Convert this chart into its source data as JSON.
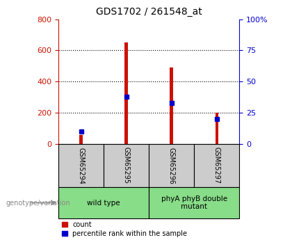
{
  "title": "GDS1702 / 261548_at",
  "categories": [
    "GSM65294",
    "GSM65295",
    "GSM65296",
    "GSM65297"
  ],
  "count_values": [
    60,
    650,
    490,
    200
  ],
  "percentile_values": [
    10,
    38,
    33,
    20
  ],
  "left_ylim": [
    0,
    800
  ],
  "right_ylim": [
    0,
    100
  ],
  "left_yticks": [
    0,
    200,
    400,
    600,
    800
  ],
  "right_yticks": [
    0,
    25,
    50,
    75,
    100
  ],
  "bar_color": "#cc1100",
  "pct_color": "#0000cc",
  "grid_color": "#000000",
  "left_axis_color": "#cc1100",
  "right_axis_color": "#0000cc",
  "group_labels": [
    "wild type",
    "phyA phyB double\nmutant"
  ],
  "group_ranges": [
    [
      0,
      2
    ],
    [
      2,
      4
    ]
  ],
  "group_bg_color": "#88dd88",
  "xticklabel_bg": "#cccccc",
  "legend_items": [
    "count",
    "percentile rank within the sample"
  ],
  "genotype_label": "genotype/variation",
  "bar_width": 0.07
}
